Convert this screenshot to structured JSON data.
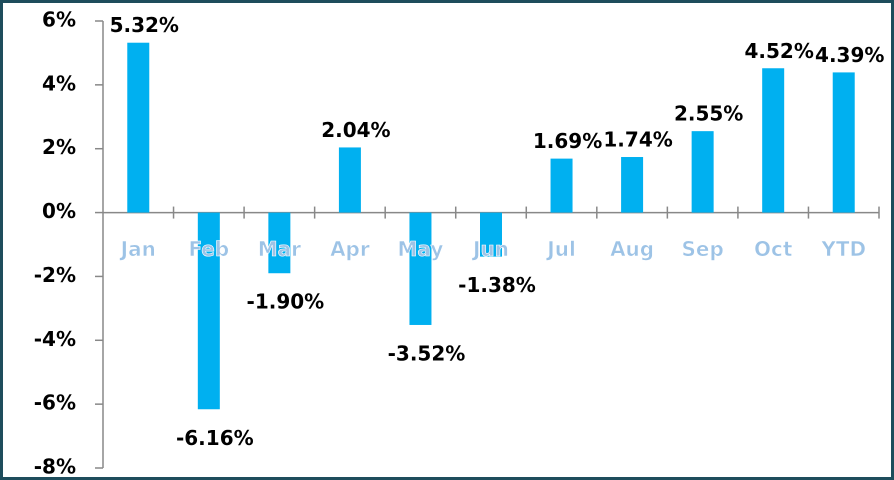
{
  "chart_data": {
    "type": "bar",
    "categories": [
      "Jan",
      "Feb",
      "Mar",
      "Apr",
      "May",
      "Jun",
      "Jul",
      "Aug",
      "Sep",
      "Oct",
      "YTD"
    ],
    "values": [
      5.32,
      -6.16,
      -1.9,
      2.04,
      -3.52,
      -1.38,
      1.69,
      1.74,
      2.55,
      4.52,
      4.39
    ],
    "value_labels": [
      "5.32%",
      "-6.16%",
      "-1.90%",
      "2.04%",
      "-3.52%",
      "-1.38%",
      "1.69%",
      "1.74%",
      "2.55%",
      "4.52%",
      "4.39%"
    ],
    "color": "#00b0f0",
    "ylim": [
      -8,
      6
    ],
    "yticks": [
      {
        "value": -8,
        "label": "-8%"
      },
      {
        "value": -6,
        "label": "-6%"
      },
      {
        "value": -4,
        "label": "-4%"
      },
      {
        "value": -2,
        "label": "-2%"
      },
      {
        "value": 0,
        "label": "0%"
      },
      {
        "value": 2,
        "label": "2%"
      },
      {
        "value": 4,
        "label": "4%"
      },
      {
        "value": 6,
        "label": "6%"
      }
    ],
    "grid": false
  }
}
